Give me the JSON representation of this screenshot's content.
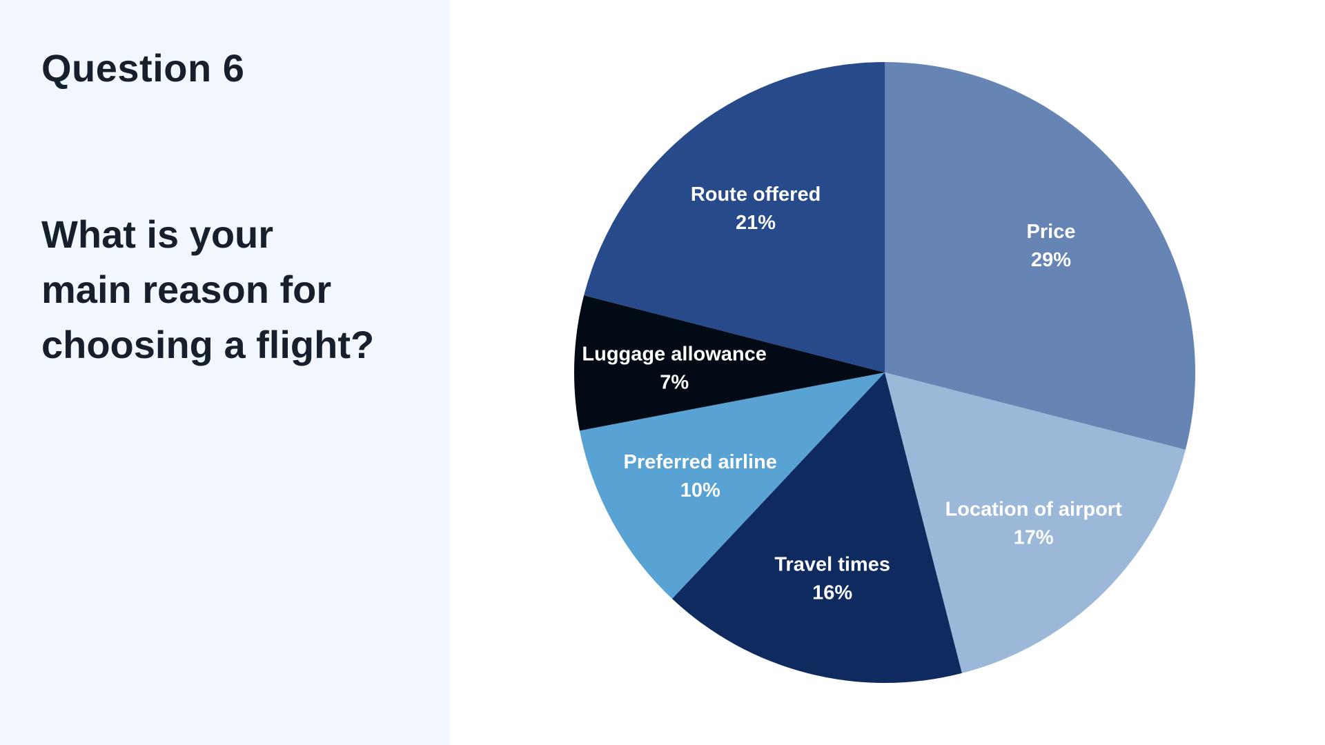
{
  "slide": {
    "question_number": "Question 6",
    "question_lines": [
      "What is your",
      "main reason for",
      "choosing a flight?"
    ]
  },
  "chart_data": {
    "type": "pie",
    "start_angle_deg": 0,
    "direction": "clockwise",
    "slices": [
      {
        "label": "Price",
        "value": 29,
        "display": "29%",
        "color": "#6785b4"
      },
      {
        "label": "Location of airport",
        "value": 17,
        "display": "17%",
        "color": "#9cb8d8"
      },
      {
        "label": "Travel times",
        "value": 16,
        "display": "16%",
        "color": "#0f2a5e"
      },
      {
        "label": "Preferred airline",
        "value": 10,
        "display": "10%",
        "color": "#59a3d4"
      },
      {
        "label": "Luggage allowance",
        "value": 7,
        "display": "7%",
        "color": "#020a16"
      },
      {
        "label": "Route offered",
        "value": 21,
        "display": "21%",
        "color": "#274b8a"
      }
    ]
  }
}
